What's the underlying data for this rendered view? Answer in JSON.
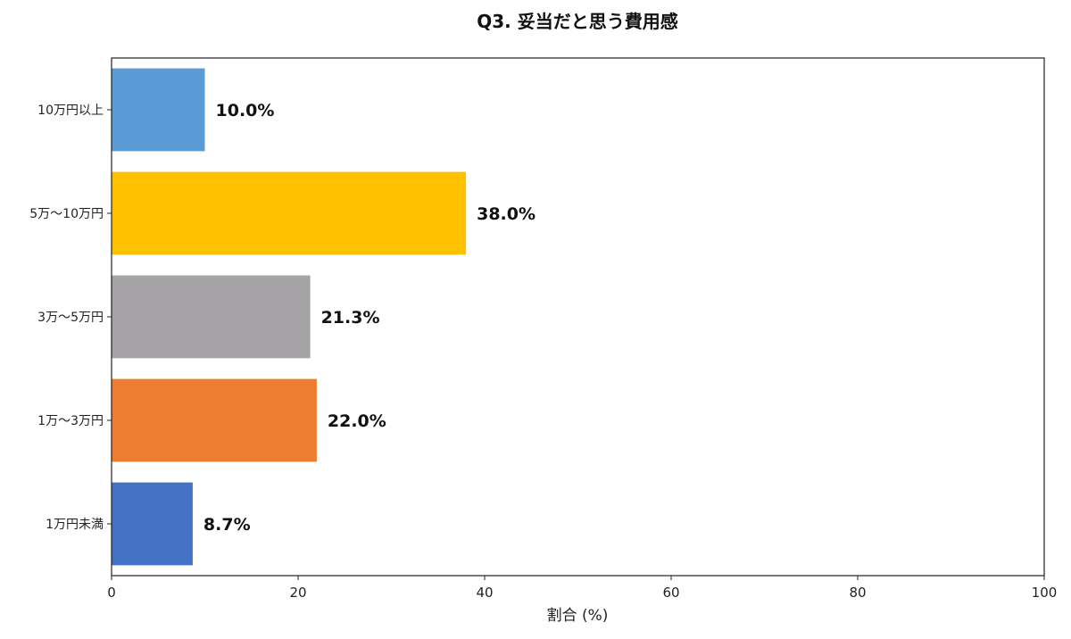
{
  "chart_data": {
    "type": "bar",
    "orientation": "horizontal",
    "title": "Q3. 妥当だと思う費用感",
    "xlabel": "割合 (%)",
    "ylabel": "",
    "xlim": [
      0,
      100
    ],
    "xticks": [
      0,
      20,
      40,
      60,
      80,
      100
    ],
    "grid": false,
    "categories": [
      "10万円以上",
      "5万〜10万円",
      "3万〜5万円",
      "1万〜3万円",
      "1万円未満"
    ],
    "values": [
      10.0,
      38.0,
      21.3,
      22.0,
      8.7
    ],
    "value_labels": [
      "10.0%",
      "38.0%",
      "21.3%",
      "22.0%",
      "8.7%"
    ],
    "colors": [
      "#5B9BD5",
      "#FFC000",
      "#A5A3A5",
      "#ED7D31",
      "#4472C4"
    ]
  }
}
